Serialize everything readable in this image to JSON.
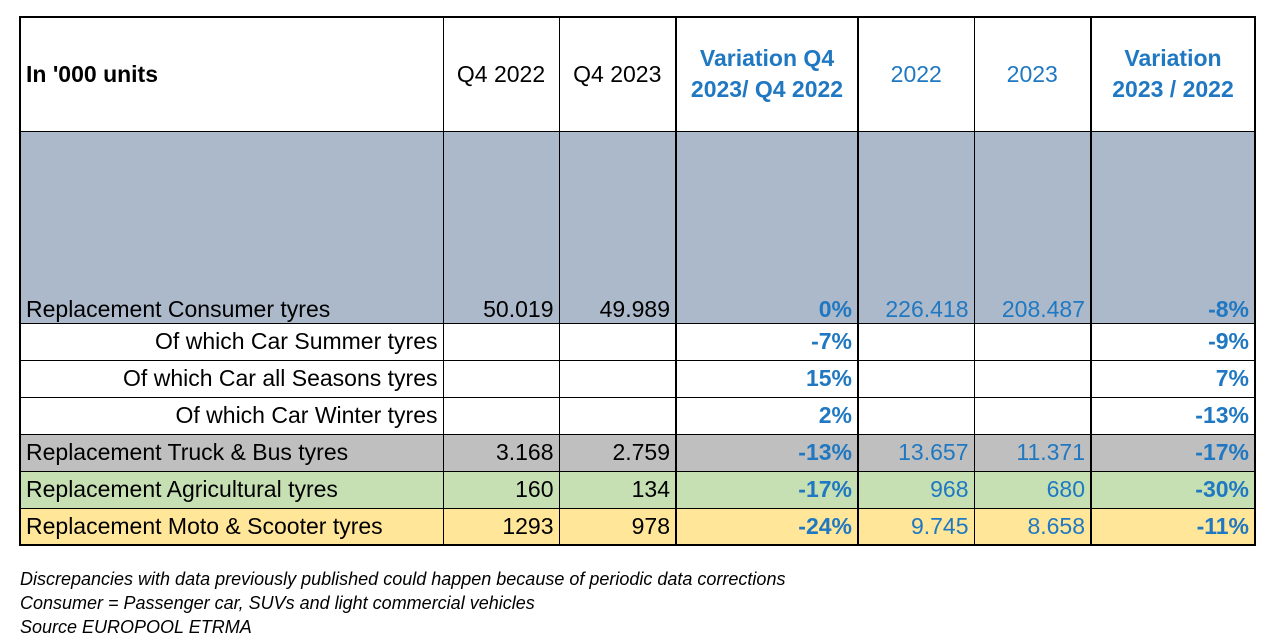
{
  "header": {
    "first": "In '000 units",
    "cols": [
      "Q4 2022",
      "Q4 2023",
      "Variation Q4 2023/ Q4 2022",
      "2022",
      "2023",
      "Variation 2023 /  2022"
    ]
  },
  "rows": [
    {
      "label": "Replacement Consumer tyres",
      "q4_2022": "50.019",
      "q4_2023": "49.989",
      "var_q4": "0%",
      "y2022": "226.418",
      "y2023": "208.487",
      "var_year": "-8%"
    },
    {
      "label": "Of which Car Summer tyres",
      "q4_2022": "",
      "q4_2023": "",
      "var_q4": "-7%",
      "y2022": "",
      "y2023": "",
      "var_year": "-9%"
    },
    {
      "label": "Of which Car all Seasons tyres",
      "q4_2022": "",
      "q4_2023": "",
      "var_q4": "15%",
      "y2022": "",
      "y2023": "",
      "var_year": "7%"
    },
    {
      "label": "Of which Car Winter tyres",
      "q4_2022": "",
      "q4_2023": "",
      "var_q4": "2%",
      "y2022": "",
      "y2023": "",
      "var_year": "-13%"
    },
    {
      "label": "Replacement Truck & Bus tyres",
      "q4_2022": "3.168",
      "q4_2023": "2.759",
      "var_q4": "-13%",
      "y2022": "13.657",
      "y2023": "11.371",
      "var_year": "-17%"
    },
    {
      "label": "Replacement Agricultural tyres",
      "q4_2022": "160",
      "q4_2023": "134",
      "var_q4": "-17%",
      "y2022": "968",
      "y2023": "680",
      "var_year": "-30%"
    },
    {
      "label": "Replacement Moto & Scooter tyres",
      "q4_2022": "1293",
      "q4_2023": "978",
      "var_q4": "-24%",
      "y2022": "9.745",
      "y2023": "8.658",
      "var_year": "-11%"
    }
  ],
  "notes": [
    "Discrepancies with data previously published could happen because of periodic data corrections",
    "Consumer = Passenger car, SUVs and light commercial vehicles",
    "Source EUROPOOL ETRMA"
  ],
  "colors": {
    "consumer": "#acb9ca",
    "truck": "#bfbfbf",
    "agricultural": "#c6e0b4",
    "moto": "#ffe699",
    "blue_text": "#1f78c1"
  }
}
